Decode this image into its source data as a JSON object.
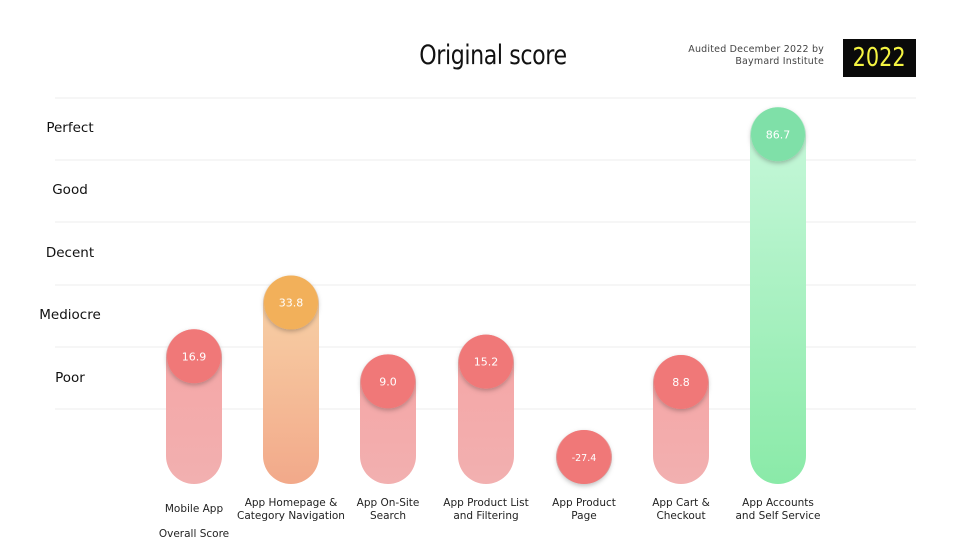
{
  "header": {
    "title": "Original score",
    "audit_line1": "Audited December 2022 by",
    "audit_line2": "Baymard Institute",
    "year_badge": "2022"
  },
  "colors": {
    "poor": "#f07878",
    "poor_bar_top": "#f5a5a5",
    "poor_bar_bottom": "#f2b0b0",
    "mediocre": "#f2b05a",
    "mediocre_bar_top": "#f8d4a8",
    "mediocre_bar_bottom": "#f2a98a",
    "perfect": "#7fe0a8",
    "perfect_bar_top": "#c9f8dc",
    "perfect_bar_bottom": "#8aeaa8",
    "grid": "#eeeeee",
    "year_bg": "#0a0a0a",
    "year_fg": "#f5f542"
  },
  "chart_data": {
    "type": "bar",
    "title": "Original score",
    "y_categories": [
      "Perfect",
      "Good",
      "Decent",
      "Mediocre",
      "Poor"
    ],
    "categories": [
      "Mobile App Overall Score",
      "App Homepage & Category Navigation",
      "App On-Site Search",
      "App Product List and Filtering",
      "App Product Page",
      "App Cart & Checkout",
      "App Accounts and Self Service"
    ],
    "category_label_lines": [
      [
        "Mobile App",
        "Overall Score"
      ],
      [
        "App Homepage &",
        "Category Navigation"
      ],
      [
        "App On-Site",
        "Search"
      ],
      [
        "App Product List",
        "and Filtering"
      ],
      [
        "App Product",
        "Page"
      ],
      [
        "App Cart &",
        "Checkout"
      ],
      [
        "App Accounts",
        "and Self Service"
      ]
    ],
    "values": [
      16.9,
      33.8,
      9.0,
      15.2,
      -27.4,
      8.8,
      86.7
    ],
    "value_labels": [
      "16.9",
      "33.8",
      "9.0",
      "15.2",
      "-27.4",
      "8.8",
      "86.7"
    ],
    "ratings": [
      "poor",
      "mediocre",
      "poor",
      "poor",
      "poor",
      "poor",
      "perfect"
    ],
    "grid": true,
    "legend": "none"
  }
}
